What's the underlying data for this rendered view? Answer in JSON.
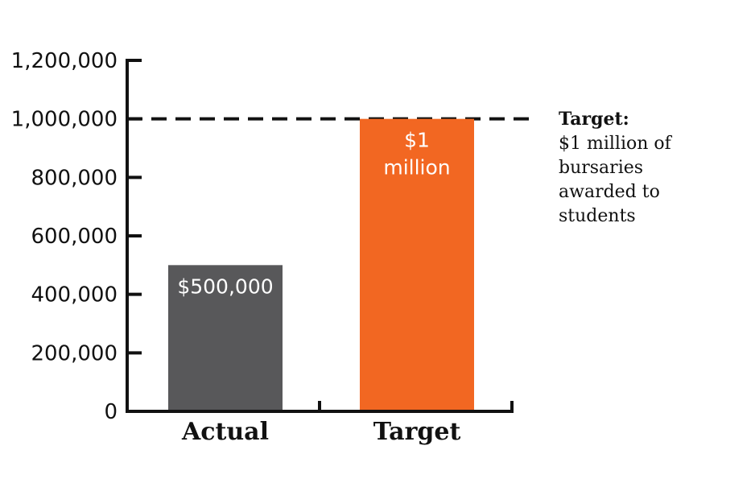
{
  "chart_data": {
    "type": "bar",
    "categories": [
      "Actual",
      "Target"
    ],
    "values": [
      500000,
      1000000
    ],
    "bar_labels": [
      [
        "$500,000"
      ],
      [
        "$1",
        "million"
      ]
    ],
    "colors": [
      "#58585a",
      "#f26722"
    ],
    "ylim": [
      0,
      1200000
    ],
    "yticks": [
      0,
      200000,
      400000,
      600000,
      800000,
      1000000,
      1200000
    ],
    "ytick_labels": [
      "0",
      "200,000",
      "400,000",
      "600,000",
      "800,000",
      "1,000,000",
      "1,200,000"
    ],
    "reference_line": {
      "value": 1000000,
      "style": "dashed"
    },
    "annotation": {
      "title": "Target:",
      "lines": [
        "$1 million of",
        "bursaries",
        "awarded to",
        "students"
      ]
    },
    "grid": false,
    "legend": "none"
  }
}
